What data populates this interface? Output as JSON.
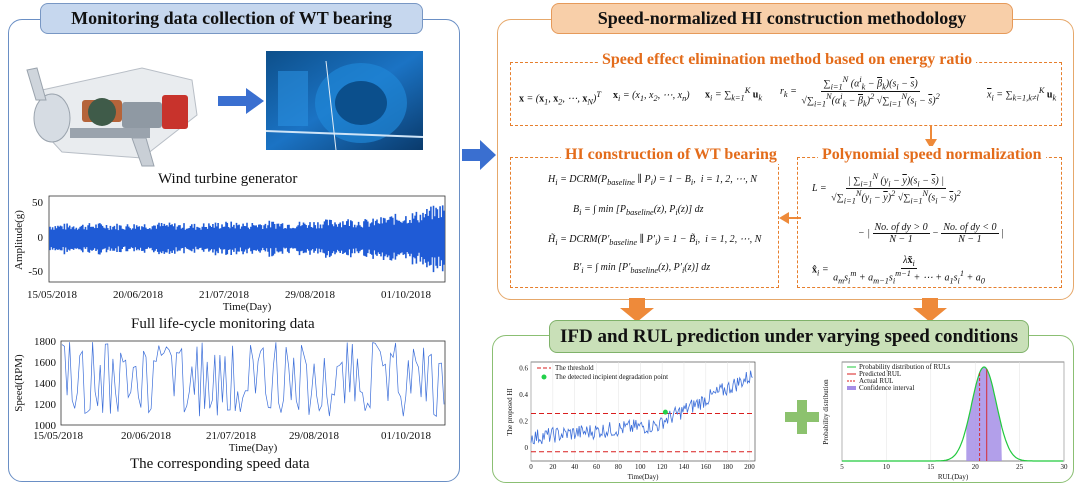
{
  "left_panel": {
    "title": "Monitoring data collection of WT bearing",
    "caption_turbine": "Wind turbine generator",
    "caption_full": "Full life-cycle monitoring data",
    "caption_speed": "The corresponding speed data"
  },
  "top_panel": {
    "title": "Speed-normalized HI construction methodology",
    "energy_title": "Speed effect elimination method based on energy ratio",
    "hi_title": "HI construction of WT bearing",
    "poly_title": "Polynomial speed normalization"
  },
  "bottom_panel": {
    "title": "IFD and RUL prediction under varying speed conditions"
  },
  "colors": {
    "signal_blue": "#1f5bd6",
    "orange_arrow": "#ee8a3a",
    "blue_arrow": "#3a6fd0",
    "green_plus": "#8cc26e"
  },
  "chart_data": [
    {
      "type": "area",
      "ylabel": "Amplitude(g)",
      "xlabel": "Time(Day)",
      "yticks": [
        "50",
        "0",
        "-50"
      ],
      "xticks": [
        "15/05/2018",
        "20/06/2018",
        "21/07/2018",
        "29/08/2018",
        "01/10/2018"
      ],
      "ylim": [
        -60,
        60
      ],
      "envelope": [
        22,
        22,
        23,
        22,
        24,
        23,
        22,
        25,
        24,
        26,
        25,
        27,
        30,
        28,
        35,
        40,
        52
      ],
      "series_color": "#1f5bd6"
    },
    {
      "type": "line",
      "ylabel": "Speed(RPM)",
      "xlabel": "Time(Day)",
      "yticks": [
        "1800",
        "1600",
        "1400",
        "1200",
        "1000"
      ],
      "xticks": [
        "15/05/2018",
        "20/06/2018",
        "21/07/2018",
        "29/08/2018",
        "01/10/2018"
      ],
      "ylim": [
        1000,
        1800
      ],
      "y_range_shown": [
        1080,
        1790
      ],
      "series_color": "#3d6fd9"
    },
    {
      "type": "line",
      "ylabel": "The proposed HI",
      "xlabel": "Time(Day)",
      "xticks": [
        "0",
        "20",
        "40",
        "60",
        "80",
        "100",
        "120",
        "140",
        "160",
        "180",
        "200"
      ],
      "yticks": [
        "0.6",
        "0.4",
        "0.2",
        "0"
      ],
      "xlim": [
        0,
        205
      ],
      "ylim": [
        -0.1,
        0.65
      ],
      "threshold_upper": 0.26,
      "threshold_lower": -0.03,
      "detected_point": {
        "x": 123,
        "y": 0.27
      },
      "legend": [
        "The threshold",
        "The detected incipient degradation point"
      ],
      "legend_position": "top-left",
      "series_color": "#3d6fd9"
    },
    {
      "type": "area",
      "ylabel": "Probability distribution",
      "xlabel": "RUL(Day)",
      "xticks": [
        "5",
        "10",
        "15",
        "20",
        "25",
        "30"
      ],
      "xlim": [
        5,
        30
      ],
      "mean": 21,
      "predicted_rul": 21.3,
      "actual_rul": 20.5,
      "interval": [
        19,
        23
      ],
      "legend": [
        "Probability distribution of RULs",
        "Predicted RUL",
        "Actual RUL",
        "Confidence interval"
      ],
      "legend_position": "top-left"
    }
  ]
}
